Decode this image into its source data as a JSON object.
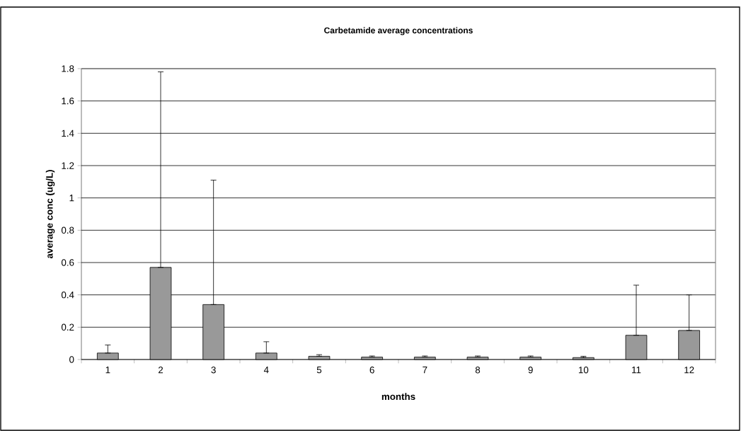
{
  "chart_data": {
    "type": "bar",
    "title": "Carbetamide average concentrations",
    "xlabel": "months",
    "ylabel": "average conc (ug/L)",
    "categories": [
      "1",
      "2",
      "3",
      "4",
      "5",
      "6",
      "7",
      "8",
      "9",
      "10",
      "11",
      "12"
    ],
    "values": [
      0.04,
      0.57,
      0.34,
      0.04,
      0.02,
      0.015,
      0.015,
      0.015,
      0.015,
      0.012,
      0.15,
      0.18
    ],
    "errors": [
      [
        0.04,
        0.09
      ],
      [
        0.57,
        1.78
      ],
      [
        0.34,
        1.11
      ],
      [
        0.04,
        0.11
      ],
      [
        0.02,
        0.03
      ],
      [
        0.015,
        0.022
      ],
      [
        0.015,
        0.022
      ],
      [
        0.015,
        0.022
      ],
      [
        0.015,
        0.022
      ],
      [
        0.012,
        0.02
      ],
      [
        0.15,
        0.46
      ],
      [
        0.18,
        0.4
      ]
    ],
    "color": "#999999",
    "ylim": [
      0,
      1.8
    ],
    "yticks": [
      0,
      0.2,
      0.4,
      0.6,
      0.8,
      1,
      1.2,
      1.4,
      1.6,
      1.8
    ],
    "grid": "y"
  }
}
